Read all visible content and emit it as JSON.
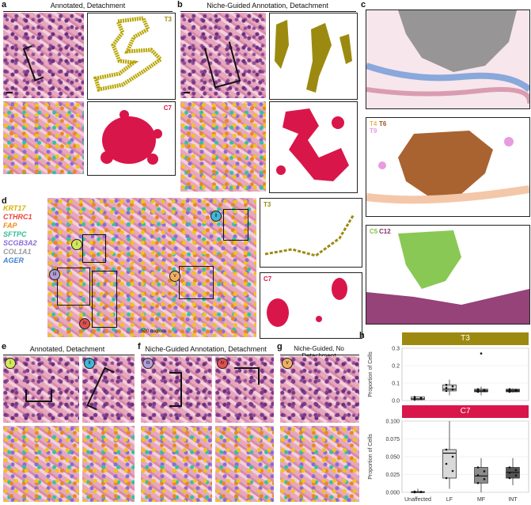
{
  "panels": {
    "a": {
      "label": "a",
      "title": "Annotated, Detachment",
      "tag_top": "T3",
      "tag_bottom": "C7"
    },
    "b": {
      "label": "b",
      "title": "Niche-Guided Annotation, Detachment"
    },
    "c": {
      "label": "c",
      "tag_mid1": "T4",
      "tag_mid2": "T6",
      "tag_mid3": "T9",
      "tag_bot1": "C5",
      "tag_bot2": "C12"
    },
    "d": {
      "label": "d",
      "scale": "500 microns",
      "tag_top": "T3",
      "tag_bottom": "C7",
      "roi": [
        "i",
        "ii",
        "iii",
        "iv",
        "v"
      ]
    },
    "e": {
      "label": "e",
      "title": "Annotated, Detachment"
    },
    "f": {
      "label": "f",
      "title": "Niche-Guided Annotation, Detachment"
    },
    "g": {
      "label": "g",
      "title": "Niche-Guided, No Detachment"
    },
    "h": {
      "label": "h"
    }
  },
  "legend": [
    {
      "name": "KRT17",
      "color": "#d4b000"
    },
    {
      "name": "CTHRC1",
      "color": "#e8423a"
    },
    {
      "name": "FAP",
      "color": "#ef8a1c"
    },
    {
      "name": "SFTPC",
      "color": "#2fbf8f"
    },
    {
      "name": "SCGB3A2",
      "color": "#8a6bd6"
    },
    {
      "name": "COL1A1",
      "color": "#9a9a9a"
    },
    {
      "name": "AGER",
      "color": "#3f7fd0"
    }
  ],
  "colors": {
    "T3": "#9c8a10",
    "C7": "#d9164a",
    "C5": "#7cc242",
    "C12": "#8b2f6a",
    "T6": "#a0521a",
    "T9": "#e79be0"
  },
  "chart_data": [
    {
      "type": "box",
      "title": "T3",
      "ylabel": "Proportion of Cells",
      "categories": [
        "Unaffected",
        "LF",
        "MF",
        "INT"
      ],
      "ylim": [
        0,
        0.3
      ],
      "yticks": [
        "0.0",
        "0.1",
        "0.2",
        "0.3"
      ],
      "boxes": [
        {
          "q1": 0.005,
          "median": 0.01,
          "q3": 0.02,
          "min": 0.0,
          "max": 0.02,
          "fill": "#ffffff"
        },
        {
          "q1": 0.055,
          "median": 0.065,
          "q3": 0.09,
          "min": 0.03,
          "max": 0.12,
          "fill": "#d9d9d9"
        },
        {
          "q1": 0.05,
          "median": 0.055,
          "q3": 0.065,
          "min": 0.03,
          "max": 0.08,
          "fill": "#8c8c8c"
        },
        {
          "q1": 0.05,
          "median": 0.055,
          "q3": 0.065,
          "min": 0.045,
          "max": 0.07,
          "fill": "#555555"
        }
      ],
      "outliers": [
        {
          "cat": 2,
          "y": 0.27
        }
      ]
    },
    {
      "type": "box",
      "title": "C7",
      "ylabel": "Proportion of Cells",
      "categories": [
        "Unaffected",
        "LF",
        "MF",
        "INT"
      ],
      "ylim": [
        0,
        0.1
      ],
      "yticks": [
        "0.000",
        "0.025",
        "0.050",
        "0.075",
        "0.100"
      ],
      "boxes": [
        {
          "q1": 0.0,
          "median": 0.0,
          "q3": 0.001,
          "min": 0.0,
          "max": 0.005,
          "fill": "#ffffff"
        },
        {
          "q1": 0.02,
          "median": 0.055,
          "q3": 0.06,
          "min": 0.005,
          "max": 0.1,
          "fill": "#d9d9d9"
        },
        {
          "q1": 0.013,
          "median": 0.023,
          "q3": 0.035,
          "min": 0.0,
          "max": 0.048,
          "fill": "#8c8c8c"
        },
        {
          "q1": 0.02,
          "median": 0.028,
          "q3": 0.035,
          "min": 0.01,
          "max": 0.048,
          "fill": "#555555"
        }
      ],
      "outliers": []
    }
  ]
}
